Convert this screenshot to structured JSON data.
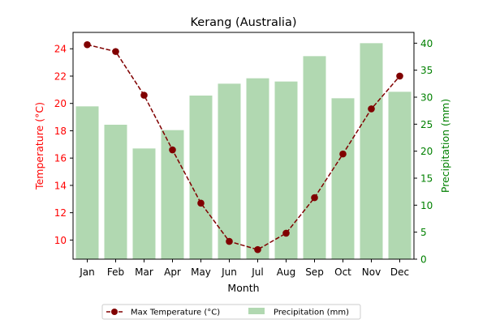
{
  "chart_data": {
    "type": "bar+line",
    "title": "Kerang (Australia)",
    "xlabel": "Month",
    "ylabel_left": "Temperature (°C)",
    "ylabel_right": "Precipitation (mm)",
    "categories": [
      "Jan",
      "Feb",
      "Mar",
      "Apr",
      "May",
      "Jun",
      "Jul",
      "Aug",
      "Sep",
      "Oct",
      "Nov",
      "Dec"
    ],
    "ylim_left": [
      8.6,
      25.2
    ],
    "yticks_left": [
      10,
      12,
      14,
      16,
      18,
      20,
      22,
      24
    ],
    "ylim_right": [
      0,
      42
    ],
    "yticks_right": [
      0,
      5,
      10,
      15,
      20,
      25,
      30,
      35,
      40
    ],
    "series": [
      {
        "name": "Max Temperature (°C)",
        "kind": "line",
        "axis": "left",
        "color": "#800000",
        "style": "dashed",
        "marker": "circle",
        "values": [
          24.3,
          23.8,
          20.6,
          16.6,
          12.7,
          9.9,
          9.3,
          10.5,
          13.1,
          16.3,
          19.6,
          22.0
        ]
      },
      {
        "name": "Precipitation (mm)",
        "kind": "bar",
        "axis": "right",
        "color": "#b1d8b1",
        "values": [
          28.3,
          24.9,
          20.5,
          23.9,
          30.3,
          32.5,
          33.5,
          32.9,
          37.6,
          29.8,
          40.0,
          31.0
        ]
      }
    ],
    "legend_position": "bottom-center",
    "left_axis_color": "#ff0000",
    "right_axis_color": "#008000",
    "grid": false
  }
}
